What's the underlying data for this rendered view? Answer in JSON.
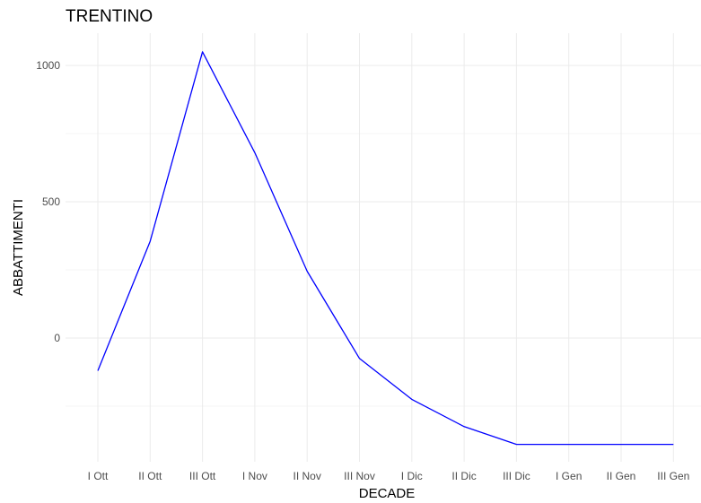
{
  "chart_data": {
    "type": "line",
    "title": "TRENTINO",
    "xlabel": "DECADE",
    "ylabel": "ABBATTIMENTI",
    "categories": [
      "I Ott",
      "II Ott",
      "III Ott",
      "I Nov",
      "II Nov",
      "III Nov",
      "I Dic",
      "II Dic",
      "III Dic",
      "I Gen",
      "II Gen",
      "III Gen"
    ],
    "series": [
      {
        "values": [
          -120,
          355,
          1050,
          680,
          245,
          -75,
          -225,
          -325,
          -390,
          -390,
          -390,
          -390
        ],
        "color": "#0000ff"
      }
    ],
    "yticks": [
      0,
      500,
      1000
    ],
    "ylim": [
      -470,
      1120
    ],
    "grid": true,
    "theme": "minimal"
  }
}
